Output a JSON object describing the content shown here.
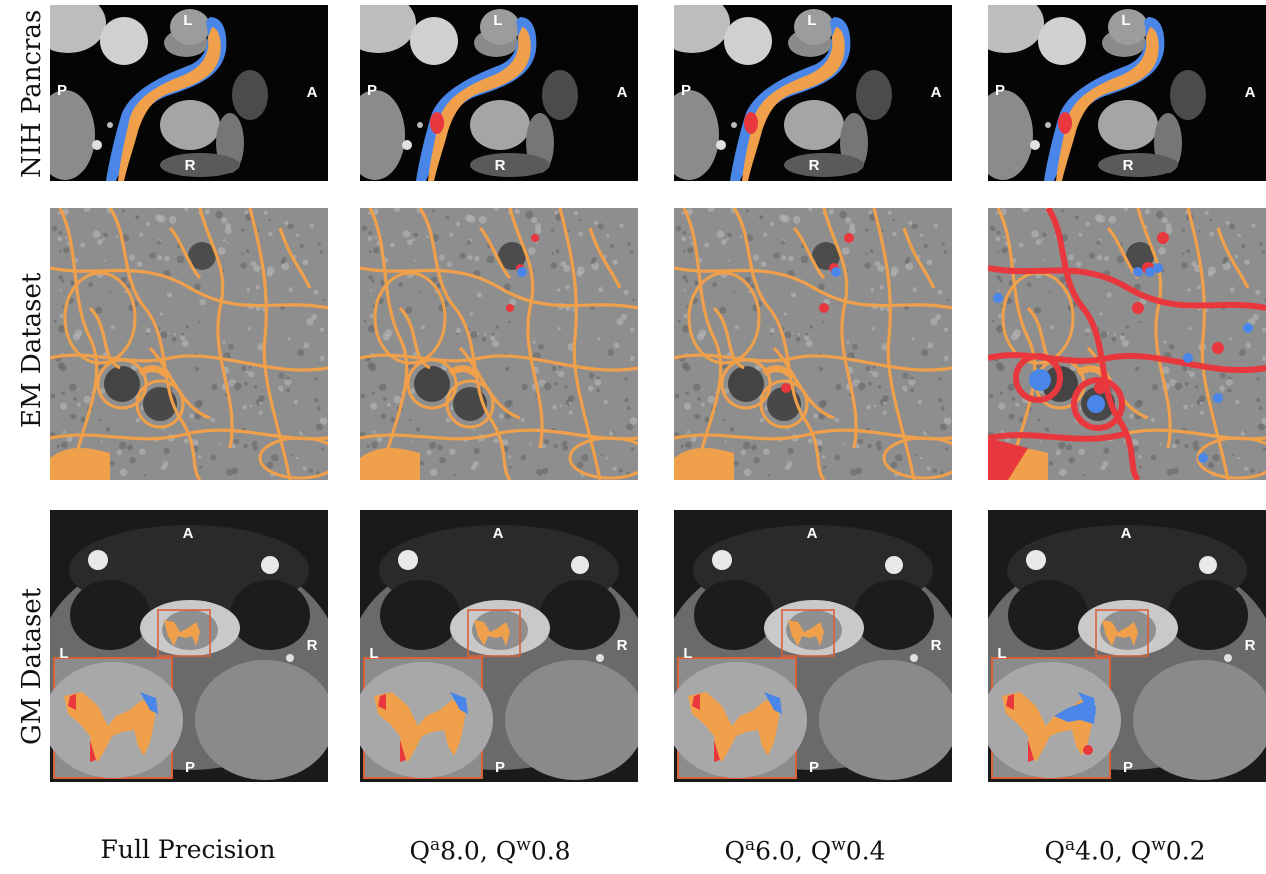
{
  "row_labels": [
    "NIH Pancras",
    "EM Dataset",
    "GM Dataset"
  ],
  "columns": [
    {
      "label_main": "Full Precision",
      "label_a": "",
      "a_val": "",
      "label_w": "",
      "w_val": ""
    },
    {
      "label_main": "Q",
      "label_a": "a",
      "a_val": "8.0, Q",
      "label_w": "w",
      "w_val": "0.8"
    },
    {
      "label_main": "Q",
      "label_a": "a",
      "a_val": "6.0, Q",
      "label_w": "w",
      "w_val": "0.4"
    },
    {
      "label_main": "Q",
      "label_a": "a",
      "a_val": "4.0, Q",
      "label_w": "w",
      "w_val": "0.2"
    }
  ],
  "orientation_markers": {
    "pancreas": {
      "top": "L",
      "left": "P",
      "right": "A",
      "bottom": "R"
    },
    "gm": {
      "top": "A",
      "left": "L",
      "right": "R",
      "bottom": "P"
    }
  },
  "colors": {
    "agreement": "#f0a04b",
    "false_negative": "#4a86e8",
    "false_positive": "#e8383d",
    "roi_box": "#d9603b"
  }
}
